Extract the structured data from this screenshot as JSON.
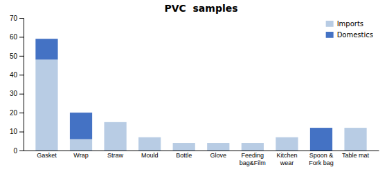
{
  "chart_data": {
    "type": "bar",
    "stacked": true,
    "title": "PVC  samples",
    "categories": [
      "Gasket",
      "Wrap",
      "Straw",
      "Mould",
      "Bottle",
      "Glove",
      "Feeding\nbag&Film",
      "Kitchen\nwear",
      "Spoon &\nFork bag",
      "Table mat"
    ],
    "series": [
      {
        "name": "Imports",
        "color": "#b8cce4",
        "values": [
          48,
          6,
          15,
          7,
          4,
          4,
          4,
          7,
          0,
          12
        ]
      },
      {
        "name": "Domestics",
        "color": "#4472c4",
        "values": [
          11,
          14,
          0,
          0,
          0,
          0,
          0,
          0,
          12,
          0
        ]
      }
    ],
    "ylim": [
      0,
      70
    ],
    "yticks": [
      0,
      10,
      20,
      30,
      40,
      50,
      60,
      70
    ],
    "legend": "upper right",
    "grid": false
  }
}
